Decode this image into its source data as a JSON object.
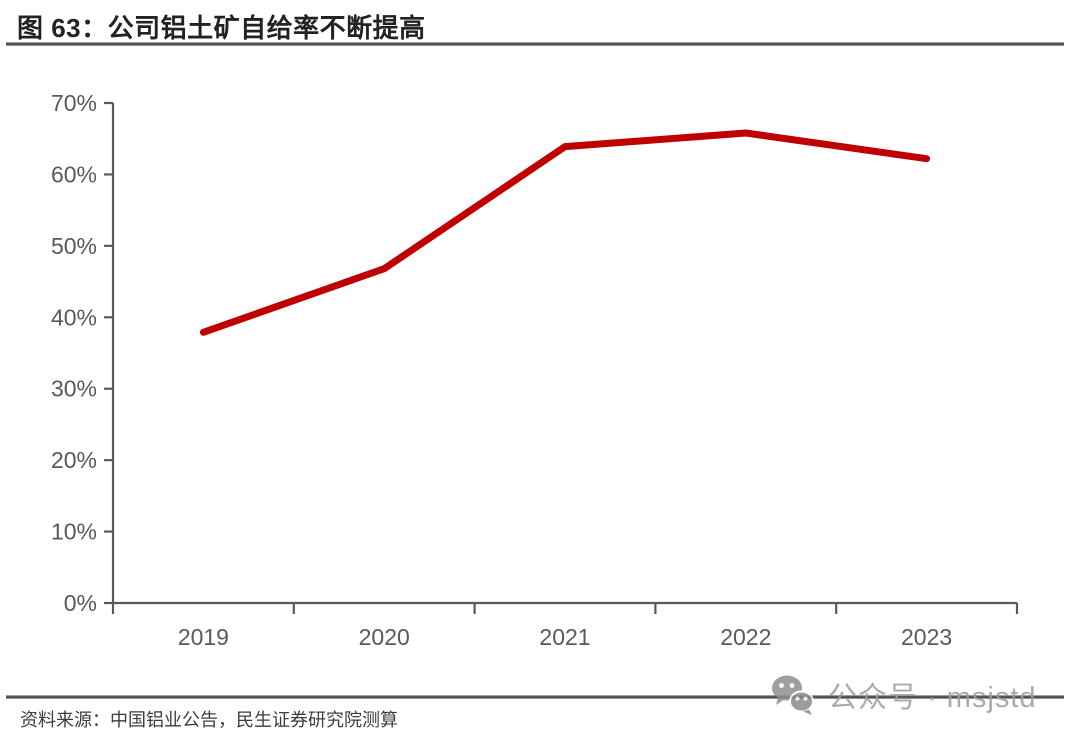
{
  "header": {
    "title": "图 63：公司铝土矿自给率不断提高"
  },
  "chart_data": {
    "type": "line",
    "title": "公司铝土矿自给率不断提高",
    "categories": [
      "2019",
      "2020",
      "2021",
      "2022",
      "2023"
    ],
    "values": [
      37.9,
      46.8,
      63.9,
      65.8,
      62.2
    ],
    "xlabel": "",
    "ylabel": "",
    "ylim": [
      0,
      70
    ],
    "ytick_step": 10,
    "ytick_suffix": "%",
    "grid": false,
    "legend_position": "none",
    "line_color": "#c00000"
  },
  "footer": {
    "source": "资料来源：中国铝业公告，民生证券研究院测算"
  },
  "watermark": {
    "icon": "wechat-icon",
    "text": "公众号 · msjstd"
  },
  "colors": {
    "line": "#c00000",
    "axis": "#595959",
    "tick_label": "#595959",
    "title_text": "#222222",
    "source_text": "#3d3d3d",
    "watermark_text": "#9c9c9c",
    "watermark_icon": "#8f8f8f"
  }
}
